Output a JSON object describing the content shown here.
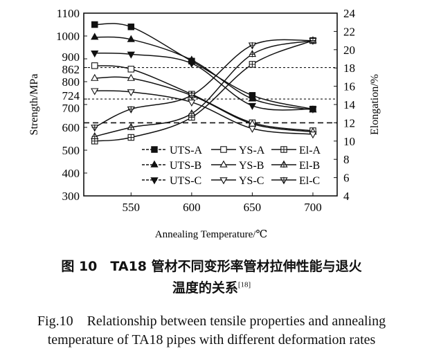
{
  "chart_data": {
    "type": "line",
    "xlabel": "Annealing Temperature/℃",
    "ylabel": "Strength/MPa",
    "y2label": "Elongation/%",
    "xlim": [
      511,
      720
    ],
    "ylim": [
      300,
      1100
    ],
    "y2lim": [
      4,
      24
    ],
    "x_ticks": [
      550,
      600,
      650,
      700
    ],
    "y_ticks": [
      300,
      400,
      500,
      600,
      700,
      724,
      800,
      862,
      900,
      1000,
      1100
    ],
    "y2_ticks": [
      4,
      6,
      8,
      10,
      12,
      14,
      16,
      18,
      20,
      22,
      24
    ],
    "grid": false,
    "legend_position": "bottom-right",
    "reference_lines": [
      {
        "axis": "y",
        "value": 862,
        "style": "dotted"
      },
      {
        "axis": "y",
        "value": 724,
        "style": "dotted"
      },
      {
        "axis": "y2",
        "value": 12,
        "style": "dashed"
      }
    ],
    "x": [
      520,
      550,
      600,
      650,
      700
    ],
    "series": [
      {
        "name": "UTS-A",
        "axis": "y",
        "marker": "filled-square",
        "values": [
          1050,
          1040,
          890,
          740,
          680
        ]
      },
      {
        "name": "YS-A",
        "axis": "y",
        "marker": "open-square",
        "values": [
          870,
          855,
          745,
          620,
          585
        ]
      },
      {
        "name": "El-A",
        "axis": "y2",
        "marker": "crossed-square",
        "values": [
          10.0,
          10.4,
          12.6,
          18.4,
          21.0
        ]
      },
      {
        "name": "UTS-B",
        "axis": "y",
        "marker": "filled-triangle-up",
        "values": [
          995,
          985,
          895,
          725,
          677
        ]
      },
      {
        "name": "YS-B",
        "axis": "y",
        "marker": "open-triangle-up",
        "values": [
          815,
          815,
          740,
          615,
          580
        ]
      },
      {
        "name": "El-B",
        "axis": "y2",
        "marker": "crossed-triangle-up",
        "values": [
          10.5,
          11.5,
          13.0,
          19.5,
          21.0
        ]
      },
      {
        "name": "UTS-C",
        "axis": "y",
        "marker": "filled-triangle-down",
        "values": [
          925,
          920,
          880,
          695,
          680
        ]
      },
      {
        "name": "YS-C",
        "axis": "y",
        "marker": "open-triangle-down",
        "values": [
          760,
          755,
          710,
          595,
          570
        ]
      },
      {
        "name": "El-C",
        "axis": "y2",
        "marker": "crossed-triangle-down",
        "values": [
          11.5,
          13.5,
          15.0,
          20.5,
          21.0
        ]
      }
    ]
  },
  "caption": {
    "cn_line1": "图 10　TA18 管材不同变形率管材拉伸性能与退火",
    "cn_line2": "温度的关系",
    "cn_ref": "[18]",
    "en_line1": "Fig.10　Relationship between tensile properties and annealing",
    "en_line2": "temperature of TA18 pipes with different deformation rates"
  }
}
